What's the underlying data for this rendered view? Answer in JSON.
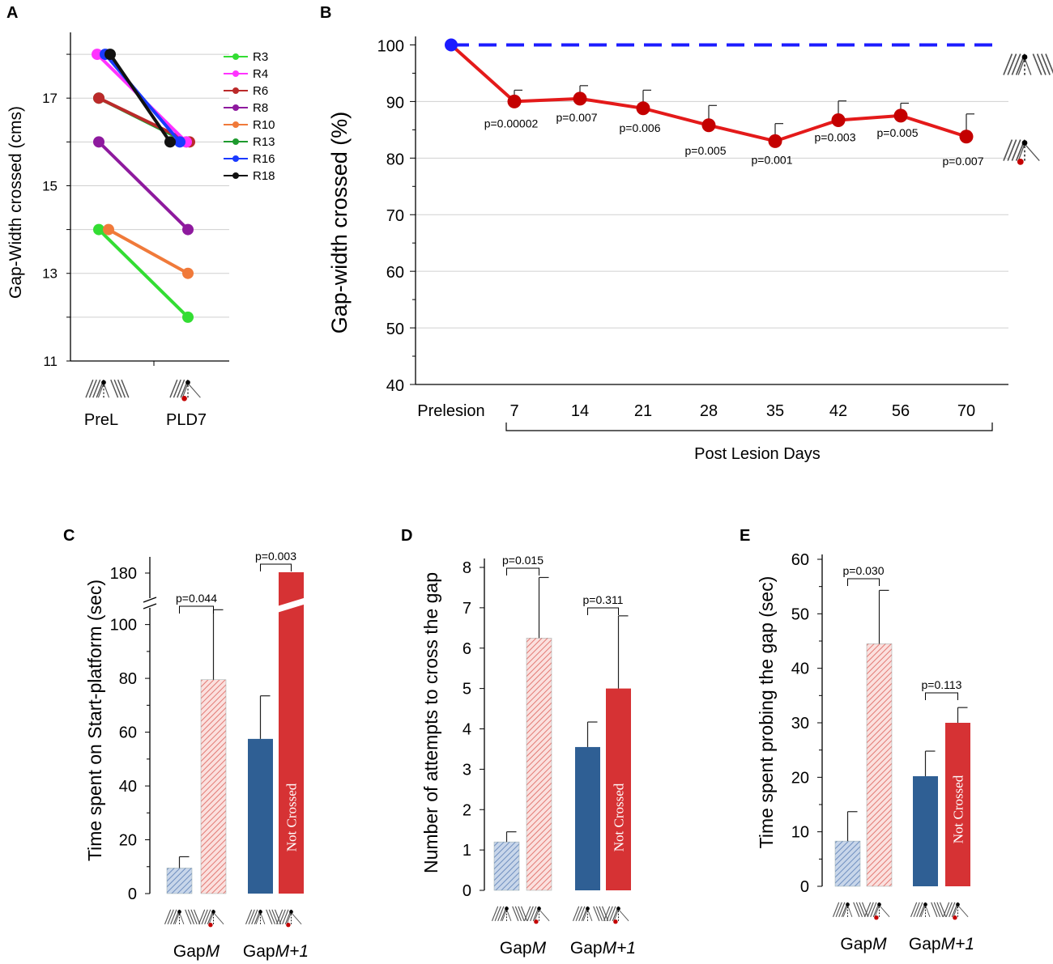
{
  "colors": {
    "blue_solid": "#2f5f94",
    "blue_hatch": "#a9bfdc",
    "red_solid": "#d63234",
    "red_hatch": "#f3b4b1",
    "dash_blue": "#1c1cff",
    "line_red": "#e41a1a",
    "dot_red": "#c40000"
  },
  "panel_letters": [
    "A",
    "B",
    "C",
    "D",
    "E"
  ],
  "chart_data": [
    {
      "id": "A",
      "type": "line",
      "title": "",
      "ylabel": "Gap-Width crossed (cms)",
      "xlabel": "",
      "categories": [
        "PreL",
        "PLD7"
      ],
      "ylim": [
        11,
        18.5
      ],
      "yticks": [
        11,
        13,
        15,
        17
      ],
      "series": [
        {
          "name": "R3",
          "color": "#33dd33",
          "values": [
            14,
            12
          ]
        },
        {
          "name": "R4",
          "color": "#ff33ff",
          "values": [
            18,
            16
          ]
        },
        {
          "name": "R6",
          "color": "#bb2a2a",
          "values": [
            17,
            16
          ]
        },
        {
          "name": "R8",
          "color": "#8e1a9e",
          "values": [
            16,
            14
          ]
        },
        {
          "name": "R10",
          "color": "#f07a3a",
          "values": [
            14,
            13
          ]
        },
        {
          "name": "R13",
          "color": "#1e9a2e",
          "values": [
            17,
            16
          ]
        },
        {
          "name": "R16",
          "color": "#1a3aff",
          "values": [
            18,
            16
          ]
        },
        {
          "name": "R18",
          "color": "#111111",
          "values": [
            18,
            16
          ]
        }
      ]
    },
    {
      "id": "B",
      "type": "line",
      "title": "",
      "ylabel": "Gap-width crossed (%)",
      "xlabel": "Post Lesion Days",
      "categories": [
        "Prelesion",
        "7",
        "14",
        "21",
        "28",
        "35",
        "42",
        "56",
        "70"
      ],
      "ylim": [
        40,
        102
      ],
      "yticks": [
        40,
        50,
        60,
        70,
        80,
        90,
        100
      ],
      "reference": {
        "value": 100,
        "style": "dashed"
      },
      "series": [
        {
          "name": "Post lesion",
          "values": [
            100,
            90,
            90.5,
            88.8,
            85.8,
            83,
            86.7,
            87.5,
            83.8
          ],
          "error": [
            0,
            2,
            2.3,
            3.2,
            3.5,
            3.1,
            3.4,
            2.2,
            4
          ]
        }
      ],
      "annotations": [
        "",
        "p=0.00002",
        "p=0.007",
        "p=0.006",
        "p=0.005",
        "p=0.001",
        "p=0.003",
        "p=0.005",
        "p=0.007"
      ]
    },
    {
      "id": "C",
      "type": "bar",
      "title": "",
      "ylabel": "Time spent on Start-platform (sec)",
      "groups": [
        "GapM",
        "GapM+1"
      ],
      "yticks": [
        0,
        20,
        40,
        60,
        80,
        100,
        180
      ],
      "axis_break": true,
      "bars": [
        {
          "group": "GapM",
          "condition": "pre",
          "value": 9.5,
          "error": 4.2,
          "fill": "hatch"
        },
        {
          "group": "GapM",
          "condition": "post",
          "value": 79.5,
          "error": 26,
          "fill": "hatch"
        },
        {
          "group": "GapM+1",
          "condition": "pre",
          "value": 57.5,
          "error": 16,
          "fill": "solid"
        },
        {
          "group": "GapM+1",
          "condition": "post",
          "value": 180,
          "error": 0,
          "fill": "solid",
          "label": "Not Crossed"
        }
      ],
      "pvalues": [
        "p=0.044",
        "p=0.003"
      ]
    },
    {
      "id": "D",
      "type": "bar",
      "title": "",
      "ylabel": "Number of attempts to cross the gap",
      "groups": [
        "GapM",
        "GapM+1"
      ],
      "ylim": [
        0,
        8
      ],
      "yticks": [
        0,
        1,
        2,
        3,
        4,
        5,
        6,
        7,
        8
      ],
      "bars": [
        {
          "group": "GapM",
          "condition": "pre",
          "value": 1.2,
          "error": 0.25,
          "fill": "hatch"
        },
        {
          "group": "GapM",
          "condition": "post",
          "value": 6.25,
          "error": 1.5,
          "fill": "hatch"
        },
        {
          "group": "GapM+1",
          "condition": "pre",
          "value": 3.55,
          "error": 0.62,
          "fill": "solid"
        },
        {
          "group": "GapM+1",
          "condition": "post",
          "value": 5.0,
          "error": 1.8,
          "fill": "solid",
          "label": "Not Crossed"
        }
      ],
      "pvalues": [
        "p=0.015",
        "p=0.311"
      ]
    },
    {
      "id": "E",
      "type": "bar",
      "title": "",
      "ylabel": "Time spent probing the gap (sec)",
      "groups": [
        "GapM",
        "GapM+1"
      ],
      "ylim": [
        0,
        60
      ],
      "yticks": [
        0,
        10,
        20,
        30,
        40,
        50,
        60
      ],
      "bars": [
        {
          "group": "GapM",
          "condition": "pre",
          "value": 8.3,
          "error": 5.4,
          "fill": "hatch"
        },
        {
          "group": "GapM",
          "condition": "post",
          "value": 44.5,
          "error": 9.8,
          "fill": "hatch"
        },
        {
          "group": "GapM+1",
          "condition": "pre",
          "value": 20.2,
          "error": 4.6,
          "fill": "solid"
        },
        {
          "group": "GapM+1",
          "condition": "post",
          "value": 30,
          "error": 2.8,
          "fill": "solid",
          "label": "Not Crossed"
        }
      ],
      "pvalues": [
        "p=0.030",
        "p=0.113"
      ]
    }
  ]
}
